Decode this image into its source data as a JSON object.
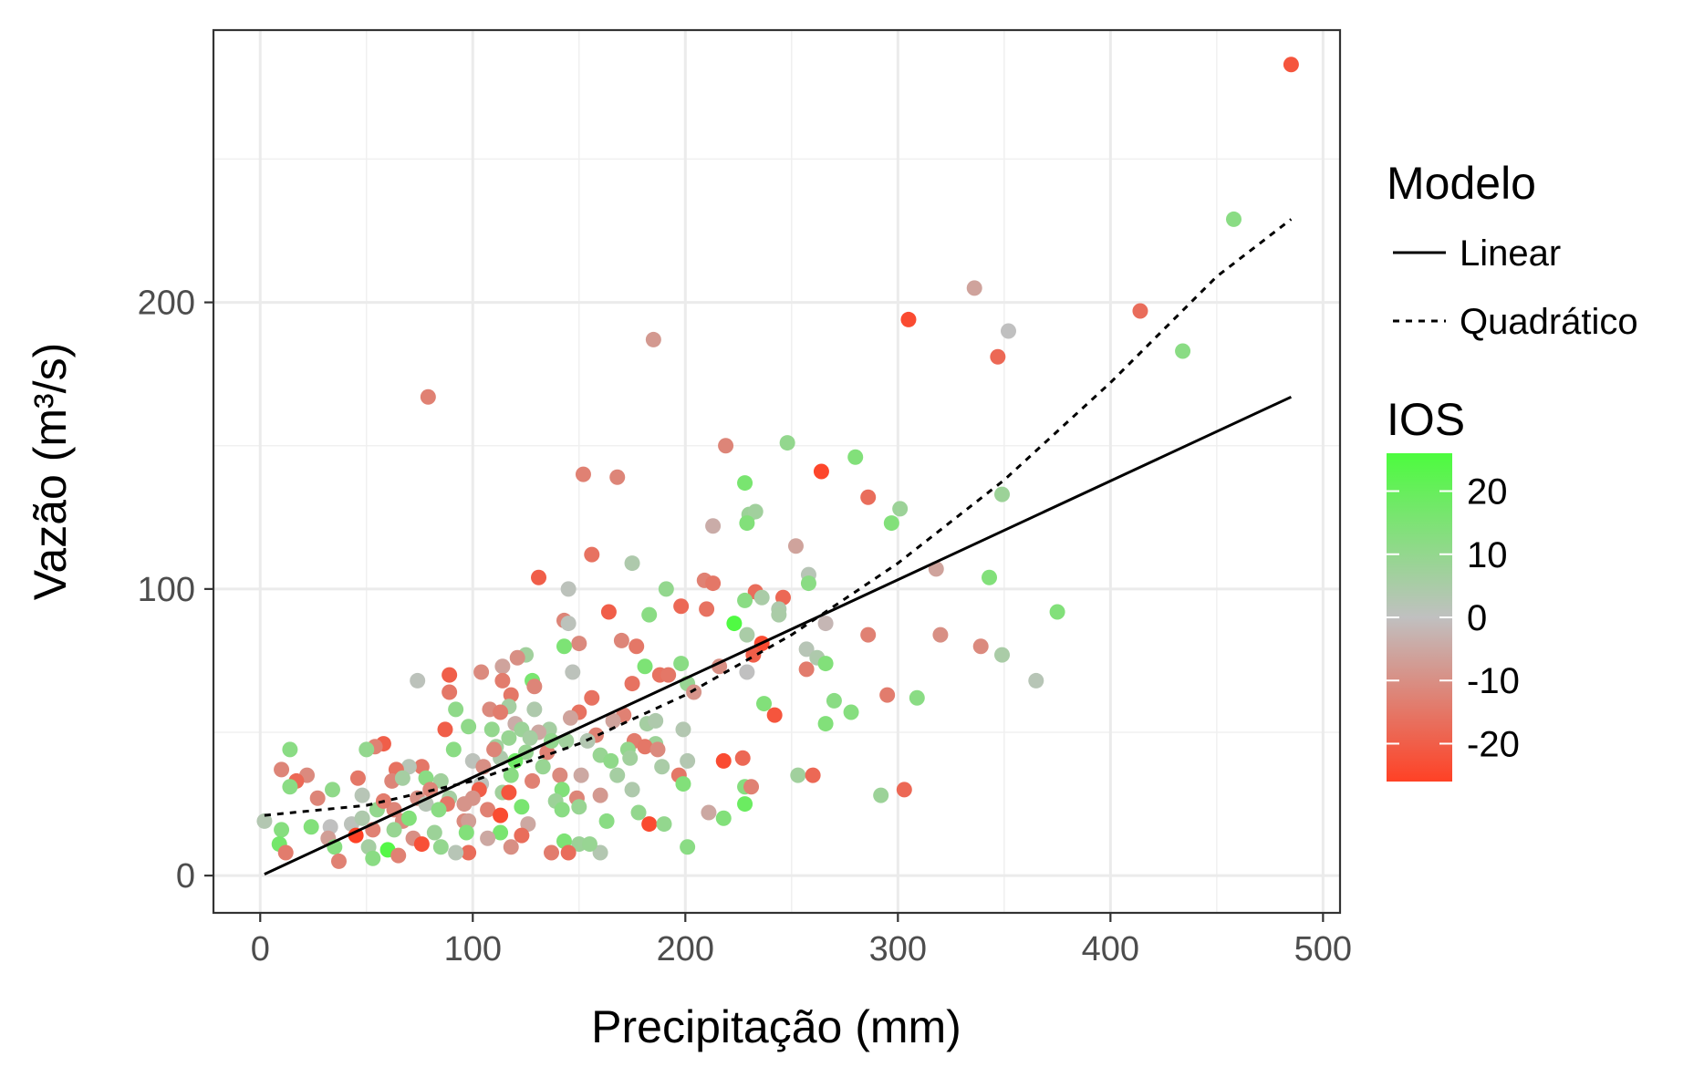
{
  "chart_data": {
    "type": "scatter",
    "xlabel": "Precipitação (mm)",
    "ylabel": "Vazão (m³/s)",
    "xlim": [
      -22,
      508
    ],
    "ylim": [
      -13,
      295
    ],
    "x_ticks": [
      0,
      100,
      200,
      300,
      400,
      500
    ],
    "y_ticks": [
      0,
      100,
      200
    ],
    "grid": true,
    "legend_position": "right",
    "lines": {
      "title": "Modelo",
      "series": [
        {
          "name": "Linear",
          "style": "solid",
          "color": "#000000",
          "x": [
            2,
            485
          ],
          "y": [
            0.5,
            167
          ]
        },
        {
          "name": "Quadrático",
          "style": "dashed",
          "color": "#000000",
          "x": [
            2,
            50,
            100,
            150,
            200,
            250,
            300,
            350,
            400,
            450,
            485
          ],
          "y": [
            21,
            24.5,
            33,
            46,
            63,
            84,
            109,
            138,
            172,
            209,
            229
          ]
        }
      ]
    },
    "color_scale": {
      "title": "IOS",
      "low_color": "#ff4125",
      "mid_color": "#c0c0c0",
      "high_color": "#4cfc3e",
      "min": -26,
      "max": 26,
      "ticks": [
        20,
        10,
        0,
        -10,
        -20
      ]
    },
    "points": [
      {
        "x": 485,
        "y": 283,
        "ios": -22
      },
      {
        "x": 458,
        "y": 229,
        "ios": 12
      },
      {
        "x": 434,
        "y": 183,
        "ios": 12
      },
      {
        "x": 414,
        "y": 197,
        "ios": -17
      },
      {
        "x": 336,
        "y": 205,
        "ios": -6
      },
      {
        "x": 352,
        "y": 190,
        "ios": 0
      },
      {
        "x": 347,
        "y": 181,
        "ios": -18
      },
      {
        "x": 305,
        "y": 194,
        "ios": -24
      },
      {
        "x": 185,
        "y": 187,
        "ios": -8
      },
      {
        "x": 79,
        "y": 167,
        "ios": -13
      },
      {
        "x": 248,
        "y": 151,
        "ios": 10
      },
      {
        "x": 219,
        "y": 150,
        "ios": -12
      },
      {
        "x": 280,
        "y": 146,
        "ios": 14
      },
      {
        "x": 152,
        "y": 140,
        "ios": -13
      },
      {
        "x": 168,
        "y": 139,
        "ios": -12
      },
      {
        "x": 264,
        "y": 141,
        "ios": -25
      },
      {
        "x": 228,
        "y": 137,
        "ios": 16
      },
      {
        "x": 286,
        "y": 132,
        "ios": -17
      },
      {
        "x": 349,
        "y": 133,
        "ios": 8
      },
      {
        "x": 301,
        "y": 128,
        "ios": 8
      },
      {
        "x": 297,
        "y": 123,
        "ios": 14
      },
      {
        "x": 230,
        "y": 126,
        "ios": 8
      },
      {
        "x": 233,
        "y": 127,
        "ios": 7
      },
      {
        "x": 229,
        "y": 123,
        "ios": 14
      },
      {
        "x": 213,
        "y": 122,
        "ios": -4
      },
      {
        "x": 252,
        "y": 115,
        "ios": -6
      },
      {
        "x": 156,
        "y": 112,
        "ios": -16
      },
      {
        "x": 175,
        "y": 109,
        "ios": 4
      },
      {
        "x": 318,
        "y": 107,
        "ios": -6
      },
      {
        "x": 258,
        "y": 105,
        "ios": 2
      },
      {
        "x": 131,
        "y": 104,
        "ios": -20
      },
      {
        "x": 343,
        "y": 104,
        "ios": 14
      },
      {
        "x": 209,
        "y": 103,
        "ios": -13
      },
      {
        "x": 213,
        "y": 102,
        "ios": -15
      },
      {
        "x": 258,
        "y": 102,
        "ios": 12
      },
      {
        "x": 145,
        "y": 100,
        "ios": 1
      },
      {
        "x": 191,
        "y": 100,
        "ios": 10
      },
      {
        "x": 233,
        "y": 99,
        "ios": -17
      },
      {
        "x": 236,
        "y": 97,
        "ios": 5
      },
      {
        "x": 246,
        "y": 97,
        "ios": -18
      },
      {
        "x": 228,
        "y": 96,
        "ios": 12
      },
      {
        "x": 198,
        "y": 94,
        "ios": -18
      },
      {
        "x": 210,
        "y": 93,
        "ios": -16
      },
      {
        "x": 244,
        "y": 93,
        "ios": 4
      },
      {
        "x": 244,
        "y": 91,
        "ios": 5
      },
      {
        "x": 375,
        "y": 92,
        "ios": 14
      },
      {
        "x": 164,
        "y": 92,
        "ios": -20
      },
      {
        "x": 183,
        "y": 91,
        "ios": 12
      },
      {
        "x": 143,
        "y": 89,
        "ios": -12
      },
      {
        "x": 145,
        "y": 88,
        "ios": 1
      },
      {
        "x": 223,
        "y": 88,
        "ios": 25
      },
      {
        "x": 266,
        "y": 88,
        "ios": -2
      },
      {
        "x": 229,
        "y": 84,
        "ios": 5
      },
      {
        "x": 286,
        "y": 84,
        "ios": -13
      },
      {
        "x": 320,
        "y": 84,
        "ios": -10
      },
      {
        "x": 170,
        "y": 82,
        "ios": -12
      },
      {
        "x": 150,
        "y": 81,
        "ios": -11
      },
      {
        "x": 177,
        "y": 80,
        "ios": -15
      },
      {
        "x": 143,
        "y": 80,
        "ios": 15
      },
      {
        "x": 236,
        "y": 81,
        "ios": -24
      },
      {
        "x": 339,
        "y": 80,
        "ios": -11
      },
      {
        "x": 232,
        "y": 77,
        "ios": -20
      },
      {
        "x": 257,
        "y": 79,
        "ios": 2
      },
      {
        "x": 349,
        "y": 77,
        "ios": 5
      },
      {
        "x": 125,
        "y": 77,
        "ios": 7
      },
      {
        "x": 121,
        "y": 76,
        "ios": -10
      },
      {
        "x": 262,
        "y": 76,
        "ios": 4
      },
      {
        "x": 266,
        "y": 74,
        "ios": 14
      },
      {
        "x": 198,
        "y": 74,
        "ios": 12
      },
      {
        "x": 181,
        "y": 73,
        "ios": 15
      },
      {
        "x": 114,
        "y": 73,
        "ios": -6
      },
      {
        "x": 216,
        "y": 73,
        "ios": -10
      },
      {
        "x": 104,
        "y": 71,
        "ios": -11
      },
      {
        "x": 147,
        "y": 71,
        "ios": 1
      },
      {
        "x": 89,
        "y": 70,
        "ios": -20
      },
      {
        "x": 188,
        "y": 70,
        "ios": -16
      },
      {
        "x": 192,
        "y": 70,
        "ios": -15
      },
      {
        "x": 229,
        "y": 71,
        "ios": 0
      },
      {
        "x": 257,
        "y": 72,
        "ios": -14
      },
      {
        "x": 74,
        "y": 68,
        "ios": 1
      },
      {
        "x": 128,
        "y": 68,
        "ios": 16
      },
      {
        "x": 365,
        "y": 68,
        "ios": 2
      },
      {
        "x": 114,
        "y": 68,
        "ios": -14
      },
      {
        "x": 201,
        "y": 67,
        "ios": 9
      },
      {
        "x": 175,
        "y": 67,
        "ios": -16
      },
      {
        "x": 129,
        "y": 66,
        "ios": -12
      },
      {
        "x": 89,
        "y": 64,
        "ios": -15
      },
      {
        "x": 204,
        "y": 64,
        "ios": -9
      },
      {
        "x": 118,
        "y": 63,
        "ios": -15
      },
      {
        "x": 295,
        "y": 63,
        "ios": -14
      },
      {
        "x": 309,
        "y": 62,
        "ios": 12
      },
      {
        "x": 270,
        "y": 61,
        "ios": 12
      },
      {
        "x": 237,
        "y": 60,
        "ios": 14
      },
      {
        "x": 117,
        "y": 59,
        "ios": 6
      },
      {
        "x": 92,
        "y": 58,
        "ios": 11
      },
      {
        "x": 129,
        "y": 58,
        "ios": 4
      },
      {
        "x": 150,
        "y": 57,
        "ios": -16
      },
      {
        "x": 108,
        "y": 58,
        "ios": -11
      },
      {
        "x": 113,
        "y": 57,
        "ios": -14
      },
      {
        "x": 171,
        "y": 56,
        "ios": -13
      },
      {
        "x": 242,
        "y": 56,
        "ios": -22
      },
      {
        "x": 278,
        "y": 57,
        "ios": 13
      },
      {
        "x": 146,
        "y": 55,
        "ios": -6
      },
      {
        "x": 166,
        "y": 54,
        "ios": -6
      },
      {
        "x": 120,
        "y": 53,
        "ios": -4
      },
      {
        "x": 182,
        "y": 53,
        "ios": 6
      },
      {
        "x": 186,
        "y": 54,
        "ios": 4
      },
      {
        "x": 266,
        "y": 53,
        "ios": 14
      },
      {
        "x": 98,
        "y": 52,
        "ios": 11
      },
      {
        "x": 109,
        "y": 51,
        "ios": 10
      },
      {
        "x": 123,
        "y": 51,
        "ios": 8
      },
      {
        "x": 136,
        "y": 51,
        "ios": 6
      },
      {
        "x": 199,
        "y": 51,
        "ios": 3
      },
      {
        "x": 87,
        "y": 51,
        "ios": -20
      },
      {
        "x": 131,
        "y": 50,
        "ios": -5
      },
      {
        "x": 158,
        "y": 49,
        "ios": -13
      },
      {
        "x": 117,
        "y": 48,
        "ios": 9
      },
      {
        "x": 127,
        "y": 48,
        "ios": 6
      },
      {
        "x": 144,
        "y": 47,
        "ios": 7
      },
      {
        "x": 154,
        "y": 47,
        "ios": 3
      },
      {
        "x": 176,
        "y": 47,
        "ios": -14
      },
      {
        "x": 186,
        "y": 46,
        "ios": 8
      },
      {
        "x": 58,
        "y": 46,
        "ios": -20
      },
      {
        "x": 54,
        "y": 45,
        "ios": -13
      },
      {
        "x": 111,
        "y": 45,
        "ios": 7
      },
      {
        "x": 173,
        "y": 44,
        "ios": 10
      },
      {
        "x": 181,
        "y": 45,
        "ios": -15
      },
      {
        "x": 187,
        "y": 44,
        "ios": -11
      },
      {
        "x": 14,
        "y": 44,
        "ios": 12
      },
      {
        "x": 50,
        "y": 44,
        "ios": 10
      },
      {
        "x": 91,
        "y": 44,
        "ios": 12
      },
      {
        "x": 125,
        "y": 43,
        "ios": 9
      },
      {
        "x": 135,
        "y": 43,
        "ios": -13
      },
      {
        "x": 160,
        "y": 42,
        "ios": 9
      },
      {
        "x": 174,
        "y": 41,
        "ios": 7
      },
      {
        "x": 100,
        "y": 40,
        "ios": 1
      },
      {
        "x": 113,
        "y": 41,
        "ios": 4
      },
      {
        "x": 201,
        "y": 40,
        "ios": 3
      },
      {
        "x": 218,
        "y": 40,
        "ios": -24
      },
      {
        "x": 227,
        "y": 41,
        "ios": -18
      },
      {
        "x": 120,
        "y": 40,
        "ios": 18
      },
      {
        "x": 189,
        "y": 38,
        "ios": 5
      },
      {
        "x": 76,
        "y": 38,
        "ios": -15
      },
      {
        "x": 70,
        "y": 38,
        "ios": 2
      },
      {
        "x": 64,
        "y": 37,
        "ios": -16
      },
      {
        "x": 10,
        "y": 37,
        "ios": -12
      },
      {
        "x": 22,
        "y": 35,
        "ios": -11
      },
      {
        "x": 118,
        "y": 35,
        "ios": 12
      },
      {
        "x": 141,
        "y": 35,
        "ios": -11
      },
      {
        "x": 151,
        "y": 35,
        "ios": -5
      },
      {
        "x": 168,
        "y": 35,
        "ios": 6
      },
      {
        "x": 197,
        "y": 35,
        "ios": -15
      },
      {
        "x": 253,
        "y": 35,
        "ios": 7
      },
      {
        "x": 260,
        "y": 35,
        "ios": -18
      },
      {
        "x": 46,
        "y": 34,
        "ios": -15
      },
      {
        "x": 78,
        "y": 34,
        "ios": 12
      },
      {
        "x": 17,
        "y": 33,
        "ios": -18
      },
      {
        "x": 62,
        "y": 33,
        "ios": -12
      },
      {
        "x": 67,
        "y": 34,
        "ios": 6
      },
      {
        "x": 85,
        "y": 33,
        "ios": 7
      },
      {
        "x": 128,
        "y": 33,
        "ios": -13
      },
      {
        "x": 104,
        "y": 32,
        "ios": 1
      },
      {
        "x": 14,
        "y": 31,
        "ios": 12
      },
      {
        "x": 34,
        "y": 30,
        "ios": 11
      },
      {
        "x": 103,
        "y": 30,
        "ios": -20
      },
      {
        "x": 142,
        "y": 30,
        "ios": 14
      },
      {
        "x": 175,
        "y": 30,
        "ios": 4
      },
      {
        "x": 199,
        "y": 32,
        "ios": 14
      },
      {
        "x": 228,
        "y": 31,
        "ios": 13
      },
      {
        "x": 231,
        "y": 31,
        "ios": -13
      },
      {
        "x": 303,
        "y": 30,
        "ios": -18
      },
      {
        "x": 114,
        "y": 29,
        "ios": 7
      },
      {
        "x": 117,
        "y": 29,
        "ios": -22
      },
      {
        "x": 160,
        "y": 28,
        "ios": -8
      },
      {
        "x": 48,
        "y": 28,
        "ios": 2
      },
      {
        "x": 27,
        "y": 27,
        "ios": -12
      },
      {
        "x": 74,
        "y": 27,
        "ios": -10
      },
      {
        "x": 89,
        "y": 27,
        "ios": 6
      },
      {
        "x": 100,
        "y": 27,
        "ios": -9
      },
      {
        "x": 139,
        "y": 26,
        "ios": 8
      },
      {
        "x": 149,
        "y": 27,
        "ios": -12
      },
      {
        "x": 292,
        "y": 28,
        "ios": 8
      },
      {
        "x": 78,
        "y": 25,
        "ios": 2
      },
      {
        "x": 88,
        "y": 25,
        "ios": -15
      },
      {
        "x": 96,
        "y": 25,
        "ios": -9
      },
      {
        "x": 123,
        "y": 24,
        "ios": 16
      },
      {
        "x": 228,
        "y": 25,
        "ios": 19
      },
      {
        "x": 55,
        "y": 23,
        "ios": 10
      },
      {
        "x": 63,
        "y": 23,
        "ios": -12
      },
      {
        "x": 84,
        "y": 23,
        "ios": 12
      },
      {
        "x": 107,
        "y": 23,
        "ios": -13
      },
      {
        "x": 142,
        "y": 23,
        "ios": 12
      },
      {
        "x": 150,
        "y": 24,
        "ios": 9
      },
      {
        "x": 178,
        "y": 22,
        "ios": 10
      },
      {
        "x": 211,
        "y": 22,
        "ios": -5
      },
      {
        "x": 113,
        "y": 21,
        "ios": -24
      },
      {
        "x": 2,
        "y": 19,
        "ios": 3
      },
      {
        "x": 43,
        "y": 18,
        "ios": 1
      },
      {
        "x": 67,
        "y": 19,
        "ios": -11
      },
      {
        "x": 96,
        "y": 19,
        "ios": -11
      },
      {
        "x": 98,
        "y": 19,
        "ios": -7
      },
      {
        "x": 126,
        "y": 18,
        "ios": -5
      },
      {
        "x": 163,
        "y": 19,
        "ios": 12
      },
      {
        "x": 183,
        "y": 18,
        "ios": -24
      },
      {
        "x": 190,
        "y": 18,
        "ios": 10
      },
      {
        "x": 218,
        "y": 20,
        "ios": 14
      },
      {
        "x": 24,
        "y": 17,
        "ios": 14
      },
      {
        "x": 33,
        "y": 17,
        "ios": 0
      },
      {
        "x": 10,
        "y": 16,
        "ios": 13
      },
      {
        "x": 53,
        "y": 16,
        "ios": -13
      },
      {
        "x": 63,
        "y": 16,
        "ios": 9
      },
      {
        "x": 82,
        "y": 15,
        "ios": 8
      },
      {
        "x": 97,
        "y": 15,
        "ios": 14
      },
      {
        "x": 113,
        "y": 15,
        "ios": 16
      },
      {
        "x": 123,
        "y": 14,
        "ios": -17
      },
      {
        "x": 45,
        "y": 14,
        "ios": -26
      },
      {
        "x": 32,
        "y": 13,
        "ios": -7
      },
      {
        "x": 72,
        "y": 13,
        "ios": -10
      },
      {
        "x": 107,
        "y": 13,
        "ios": -5
      },
      {
        "x": 76,
        "y": 11,
        "ios": -23
      },
      {
        "x": 9,
        "y": 11,
        "ios": 17
      },
      {
        "x": 143,
        "y": 12,
        "ios": 15
      },
      {
        "x": 150,
        "y": 11,
        "ios": 8
      },
      {
        "x": 35,
        "y": 10,
        "ios": 13
      },
      {
        "x": 51,
        "y": 10,
        "ios": 6
      },
      {
        "x": 60,
        "y": 9,
        "ios": 24
      },
      {
        "x": 85,
        "y": 10,
        "ios": 10
      },
      {
        "x": 118,
        "y": 10,
        "ios": -10
      },
      {
        "x": 201,
        "y": 10,
        "ios": 12
      },
      {
        "x": 12,
        "y": 8,
        "ios": -14
      },
      {
        "x": 98,
        "y": 8,
        "ios": -17
      },
      {
        "x": 92,
        "y": 8,
        "ios": 2
      },
      {
        "x": 137,
        "y": 8,
        "ios": -14
      },
      {
        "x": 145,
        "y": 8,
        "ios": -17
      },
      {
        "x": 160,
        "y": 8,
        "ios": 3
      },
      {
        "x": 53,
        "y": 6,
        "ios": 12
      },
      {
        "x": 65,
        "y": 7,
        "ios": -13
      },
      {
        "x": 37,
        "y": 5,
        "ios": -13
      },
      {
        "x": 155,
        "y": 11,
        "ios": 9
      },
      {
        "x": 48,
        "y": 20,
        "ios": 4
      },
      {
        "x": 70,
        "y": 20,
        "ios": 14
      },
      {
        "x": 105,
        "y": 38,
        "ios": -10
      },
      {
        "x": 133,
        "y": 38,
        "ios": 9
      },
      {
        "x": 58,
        "y": 26,
        "ios": -14
      },
      {
        "x": 80,
        "y": 30,
        "ios": -12
      },
      {
        "x": 110,
        "y": 44,
        "ios": -12
      },
      {
        "x": 137,
        "y": 47,
        "ios": 10
      },
      {
        "x": 156,
        "y": 62,
        "ios": -16
      },
      {
        "x": 165,
        "y": 40,
        "ios": 11
      }
    ]
  }
}
